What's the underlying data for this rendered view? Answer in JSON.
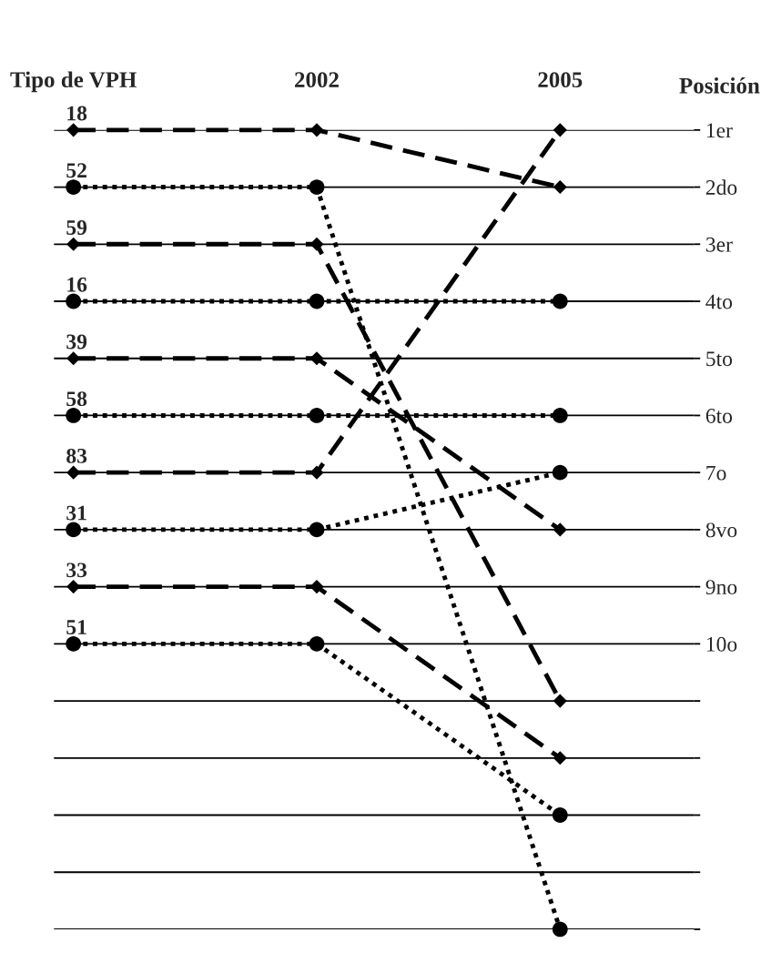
{
  "chart_data": {
    "type": "line",
    "categories": [
      "Tipo de VPH",
      "2002",
      "2005"
    ],
    "ylabel": "Posición",
    "ylim": [
      15,
      1
    ],
    "yticks": [
      {
        "value": 1,
        "label": "1er"
      },
      {
        "value": 2,
        "label": "2do"
      },
      {
        "value": 3,
        "label": "3er"
      },
      {
        "value": 4,
        "label": "4to"
      },
      {
        "value": 5,
        "label": "5to"
      },
      {
        "value": 6,
        "label": "6to"
      },
      {
        "value": 7,
        "label": "7o"
      },
      {
        "value": 8,
        "label": "8vo"
      },
      {
        "value": 9,
        "label": "9no"
      },
      {
        "value": 10,
        "label": "10o"
      },
      {
        "value": 11,
        "label": null
      },
      {
        "value": 12,
        "label": null
      },
      {
        "value": 13,
        "label": null
      },
      {
        "value": 14,
        "label": null
      },
      {
        "value": 15,
        "label": null
      }
    ],
    "grid": "y",
    "series": [
      {
        "name": "18",
        "color": "#000000",
        "values": [
          1,
          1,
          2
        ],
        "line_style": "dashed",
        "marker": "diamond"
      },
      {
        "name": "52",
        "color": "#000000",
        "values": [
          2,
          2,
          15
        ],
        "line_style": "dotted",
        "marker": "circle"
      },
      {
        "name": "59",
        "color": "#000000",
        "values": [
          3,
          3,
          11
        ],
        "line_style": "dashed",
        "marker": "diamond"
      },
      {
        "name": "16",
        "color": "#000000",
        "values": [
          4,
          4,
          4
        ],
        "line_style": "dotted",
        "marker": "circle"
      },
      {
        "name": "39",
        "color": "#000000",
        "values": [
          5,
          5,
          8
        ],
        "line_style": "dashed",
        "marker": "diamond"
      },
      {
        "name": "58",
        "color": "#000000",
        "values": [
          6,
          6,
          6
        ],
        "line_style": "dotted",
        "marker": "circle"
      },
      {
        "name": "83",
        "color": "#000000",
        "values": [
          7,
          7,
          1
        ],
        "line_style": "dashed",
        "marker": "diamond"
      },
      {
        "name": "31",
        "color": "#000000",
        "values": [
          8,
          8,
          7
        ],
        "line_style": "dotted",
        "marker": "circle"
      },
      {
        "name": "33",
        "color": "#000000",
        "values": [
          9,
          9,
          12
        ],
        "line_style": "dashed",
        "marker": "diamond"
      },
      {
        "name": "51",
        "color": "#000000",
        "values": [
          10,
          10,
          13
        ],
        "line_style": "dotted",
        "marker": "circle"
      }
    ]
  }
}
